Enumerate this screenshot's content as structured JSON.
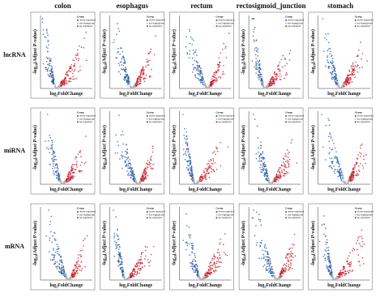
{
  "columns": [
    "colon",
    "esophagus",
    "rectum",
    "rectosigmoid_junction",
    "stomach"
  ],
  "rows": [
    "lncRNA",
    "miRNA",
    "mRNA"
  ],
  "y_label": {
    "prefix": "-log",
    "sub": "10",
    "suffix": "(Adjust P-value)"
  },
  "x_label": {
    "prefix": "log",
    "sub": "2",
    "suffix": "FoldChange"
  },
  "legend": {
    "title": "Group",
    "items": [
      {
        "name": "down-regulated",
        "color": "#2b5ca6"
      },
      {
        "name": "not-signigicant",
        "color": "#b5b5b5"
      },
      {
        "name": "up-regulated",
        "color": "#c6202e"
      }
    ]
  }
}
